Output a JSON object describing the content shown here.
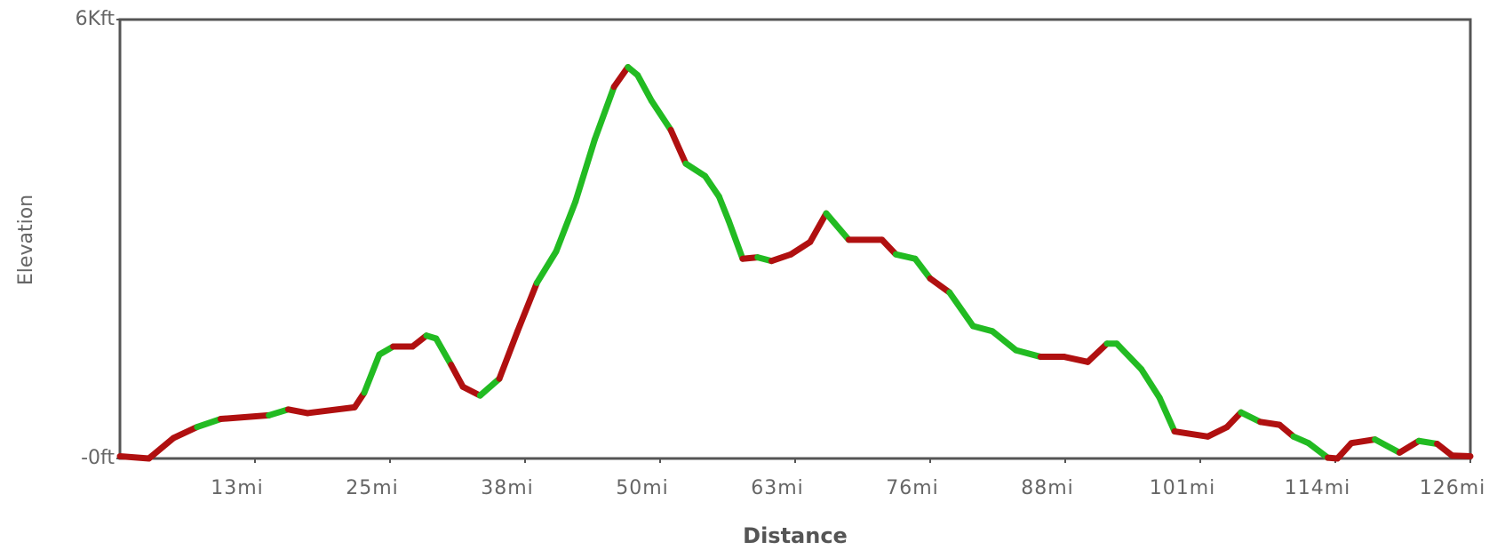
{
  "chart_data": {
    "type": "line",
    "x_label": "Distance",
    "y_label": "Elevation",
    "xlim": [
      0,
      126
    ],
    "ylim": [
      0,
      6000
    ],
    "xticks": [
      {
        "value": 12.6,
        "label": "13mi"
      },
      {
        "value": 25.2,
        "label": "25mi"
      },
      {
        "value": 37.8,
        "label": "38mi"
      },
      {
        "value": 50.4,
        "label": "50mi"
      },
      {
        "value": 63,
        "label": "63mi"
      },
      {
        "value": 75.6,
        "label": "76mi"
      },
      {
        "value": 88.2,
        "label": "88mi"
      },
      {
        "value": 100.8,
        "label": "101mi"
      },
      {
        "value": 113.4,
        "label": "114mi"
      },
      {
        "value": 126,
        "label": "126mi"
      }
    ],
    "yticks": [
      {
        "value": 0,
        "label": "-0ft"
      },
      {
        "value": 6000,
        "label": "6Kft"
      }
    ],
    "x": [
      0,
      2.7,
      5.0,
      7.2,
      9.4,
      13.9,
      15.7,
      17.5,
      21.9,
      22.8,
      24.2,
      25.5,
      27.3,
      28.6,
      29.5,
      30.9,
      32.0,
      33.6,
      35.4,
      37.1,
      38.9,
      40.7,
      42.5,
      44.3,
      46.1,
      47.4,
      48.3,
      49.6,
      51.4,
      52.8,
      54.6,
      55.9,
      56.8,
      58.1,
      59.5,
      60.8,
      62.6,
      64.4,
      65.9,
      68.0,
      71.1,
      72.4,
      74.2,
      75.6,
      77.4,
      79.6,
      81.4,
      83.6,
      85.9,
      88.1,
      90.3,
      92.1,
      93.0,
      95.3,
      97.0,
      98.4,
      101.5,
      103.3,
      104.6,
      106.4,
      108.2,
      109.5,
      110.9,
      112.7,
      113.6,
      114.9,
      117.1,
      119.4,
      121.2,
      122.9,
      124.3,
      126
    ],
    "series": [
      {
        "values": [
          30,
          0,
          280,
          430,
          540,
          590,
          670,
          620,
          700,
          900,
          1420,
          1530,
          1530,
          1680,
          1640,
          1280,
          980,
          860,
          1090,
          1740,
          2400,
          2830,
          3510,
          4360,
          5080,
          5350,
          5240,
          4890,
          4490,
          4030,
          3860,
          3580,
          3250,
          2730,
          2750,
          2700,
          2790,
          2960,
          3350,
          2990,
          2990,
          2790,
          2730,
          2460,
          2270,
          1810,
          1740,
          1480,
          1390,
          1390,
          1320,
          1570,
          1570,
          1220,
          830,
          370,
          300,
          430,
          630,
          500,
          460,
          300,
          210,
          10,
          0,
          210,
          260,
          80,
          240,
          200,
          40,
          30
        ],
        "segment_colors": [
          "#b01010",
          "#b01010",
          "#b01010",
          "#22bb22",
          "#b01010",
          "#22bb22",
          "#b01010",
          "#b01010",
          "#b01010",
          "#22bb22",
          "#22bb22",
          "#b01010",
          "#b01010",
          "#22bb22",
          "#22bb22",
          "#b01010",
          "#b01010",
          "#22bb22",
          "#b01010",
          "#b01010",
          "#22bb22",
          "#22bb22",
          "#22bb22",
          "#22bb22",
          "#b01010",
          "#22bb22",
          "#22bb22",
          "#22bb22",
          "#b01010",
          "#22bb22",
          "#22bb22",
          "#22bb22",
          "#22bb22",
          "#b01010",
          "#22bb22",
          "#b01010",
          "#b01010",
          "#b01010",
          "#22bb22",
          "#b01010",
          "#b01010",
          "#22bb22",
          "#22bb22",
          "#b01010",
          "#22bb22",
          "#22bb22",
          "#22bb22",
          "#22bb22",
          "#b01010",
          "#b01010",
          "#b01010",
          "#22bb22",
          "#22bb22",
          "#22bb22",
          "#22bb22",
          "#b01010",
          "#b01010",
          "#b01010",
          "#22bb22",
          "#b01010",
          "#b01010",
          "#22bb22",
          "#22bb22",
          "#b01010",
          "#b01010",
          "#b01010",
          "#22bb22",
          "#b01010",
          "#22bb22",
          "#b01010",
          "#b01010"
        ]
      }
    ]
  }
}
